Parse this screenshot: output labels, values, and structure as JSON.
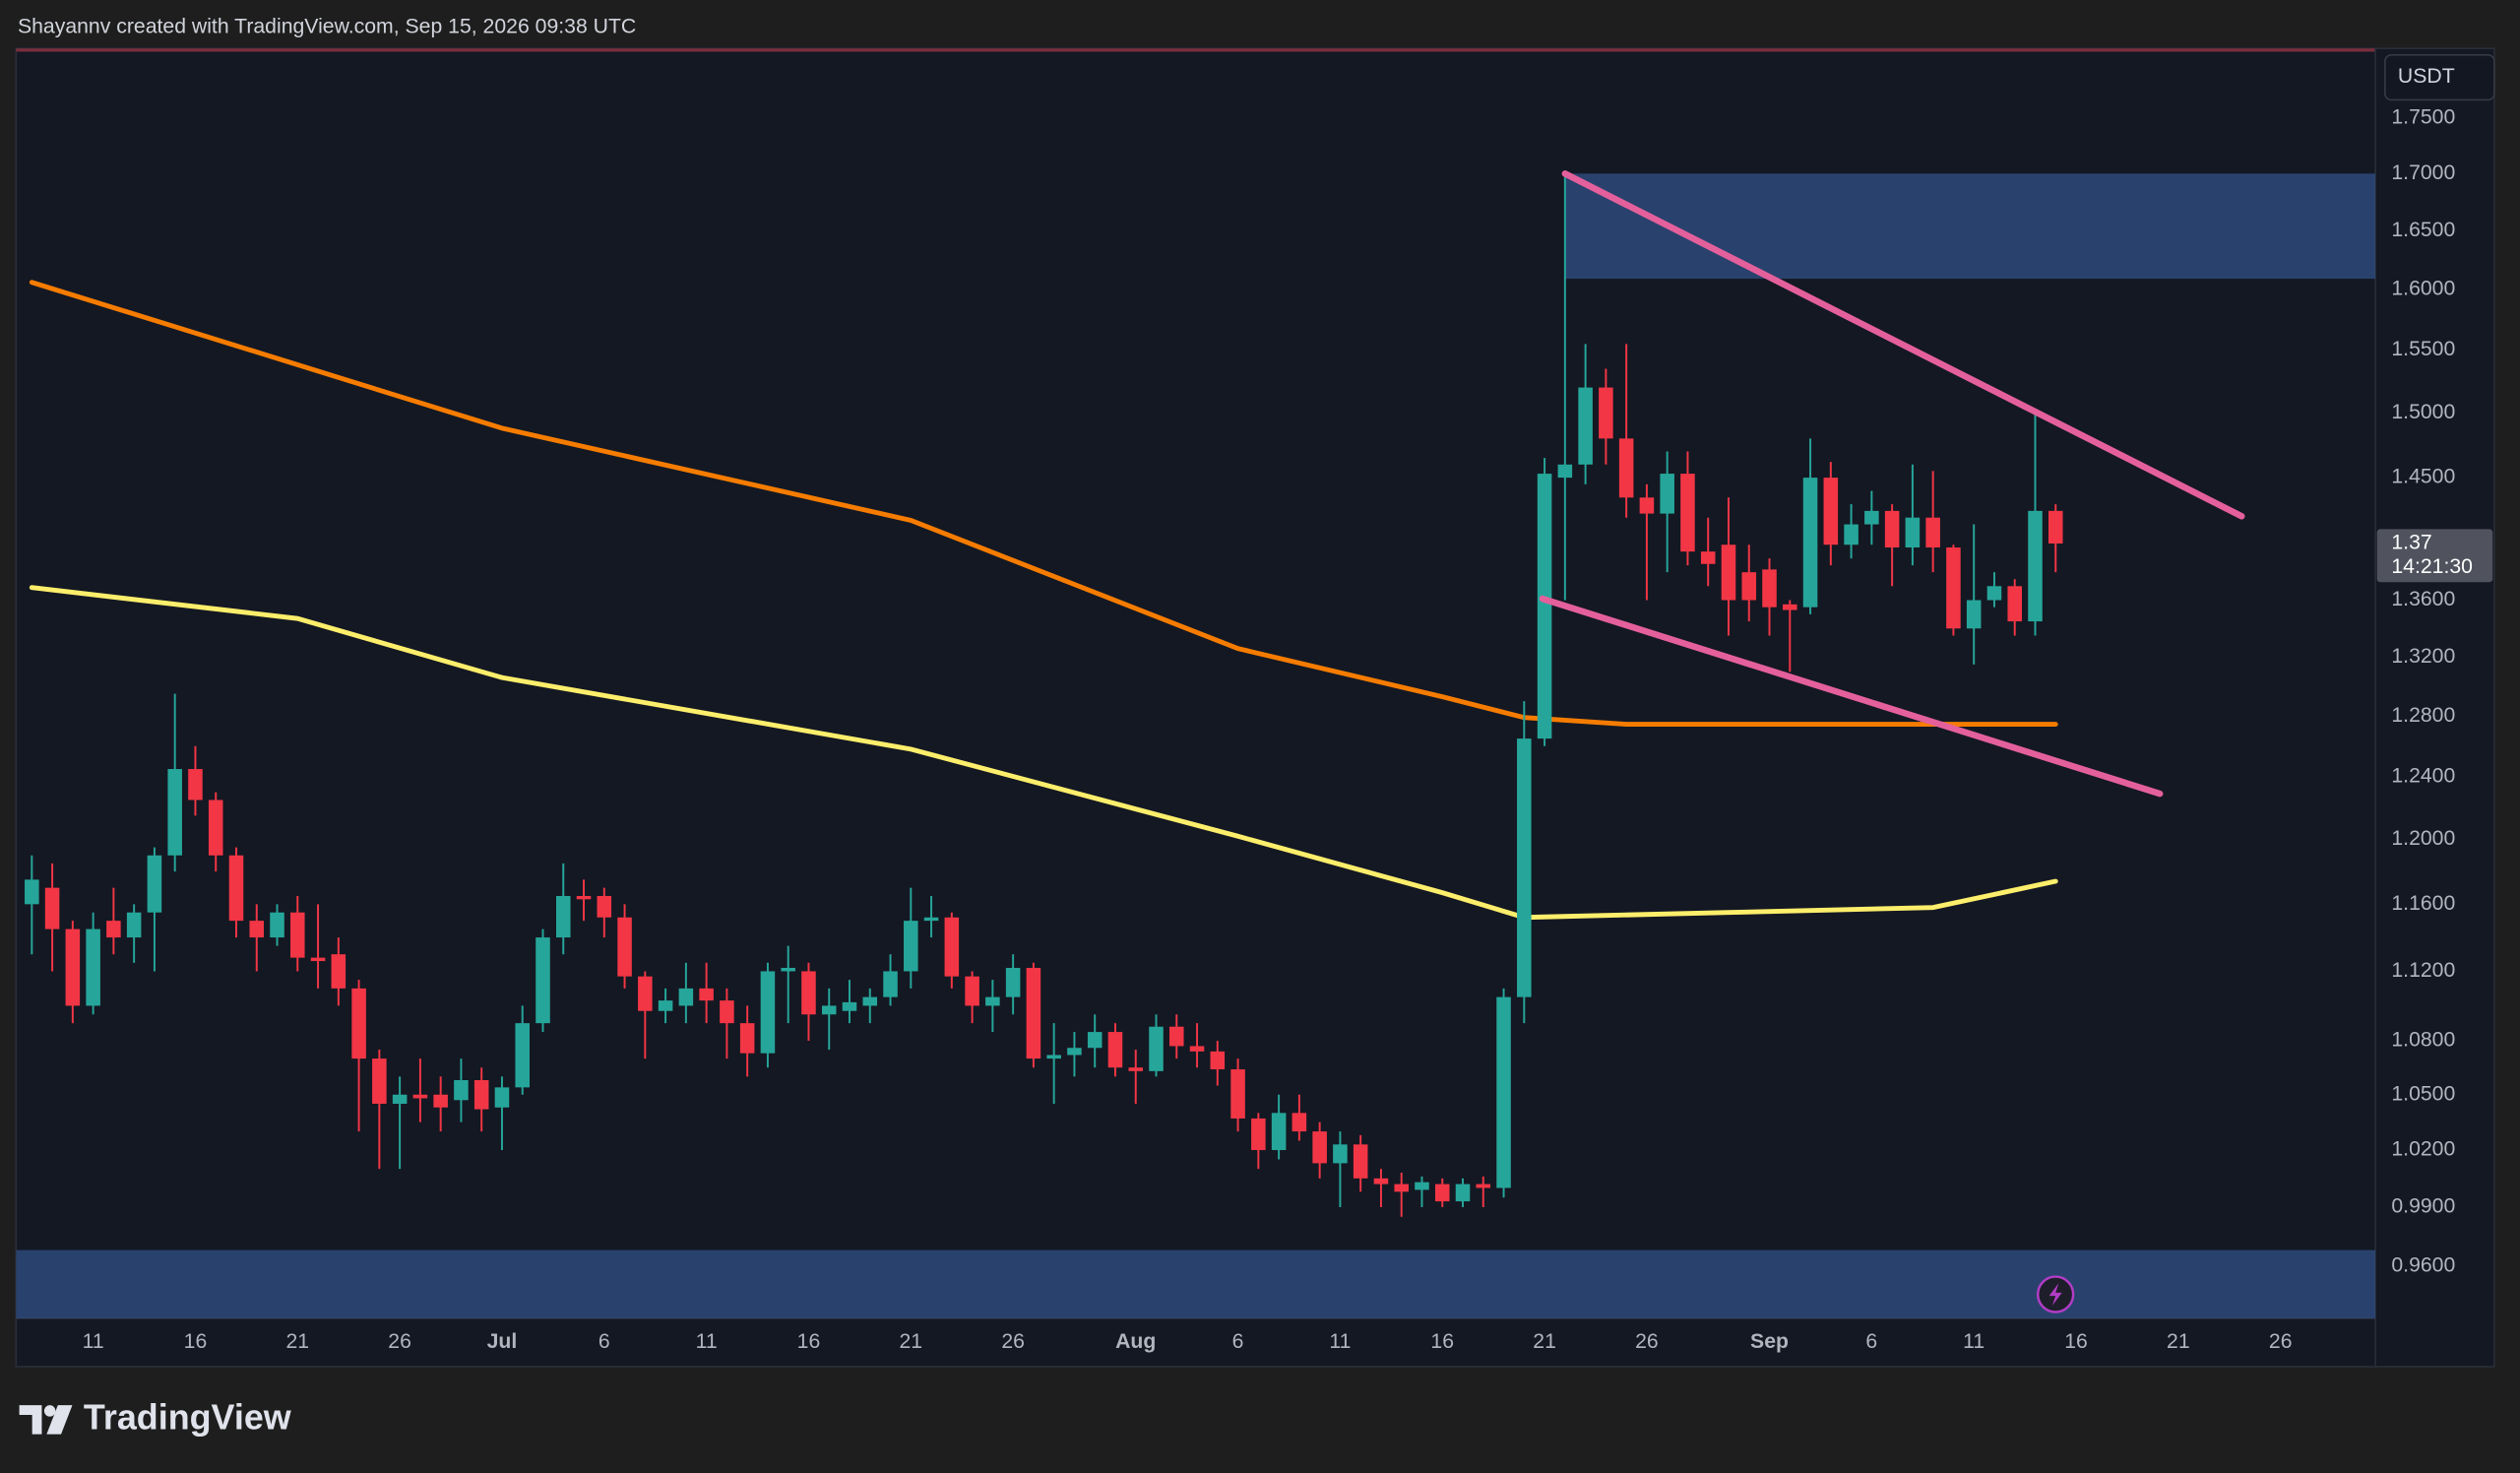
{
  "header": "Shayannv created with TradingView.com, Sep 15, 2026 09:38 UTC",
  "logo": "TradingView",
  "currency": "USDT",
  "countdown": "14:21:30",
  "chart_data": {
    "type": "candlestick",
    "log_scale": true,
    "up_color": "#26a69a",
    "down_color": "#f23645",
    "xlim": [
      -3.77,
      111.64
    ],
    "ylim": [
      0.934,
      1.815
    ],
    "xticks": [
      {
        "value": 0,
        "label": "11"
      },
      {
        "value": 5,
        "label": "16"
      },
      {
        "value": 10,
        "label": "21"
      },
      {
        "value": 15,
        "label": "26"
      },
      {
        "value": 20,
        "label": "Jul"
      },
      {
        "value": 25,
        "label": "6"
      },
      {
        "value": 30,
        "label": "11"
      },
      {
        "value": 35,
        "label": "16"
      },
      {
        "value": 40,
        "label": "21"
      },
      {
        "value": 45,
        "label": "26"
      },
      {
        "value": 51,
        "label": "Aug"
      },
      {
        "value": 56,
        "label": "6"
      },
      {
        "value": 61,
        "label": "11"
      },
      {
        "value": 66,
        "label": "16"
      },
      {
        "value": 71,
        "label": "21"
      },
      {
        "value": 76,
        "label": "26"
      },
      {
        "value": 82,
        "label": "Sep"
      },
      {
        "value": 87,
        "label": "6"
      },
      {
        "value": 92,
        "label": "11"
      },
      {
        "value": 97,
        "label": "16"
      },
      {
        "value": 102,
        "label": "21"
      },
      {
        "value": 107,
        "label": "26"
      }
    ],
    "yticks": [
      {
        "value": 0.96,
        "label": "0.9600"
      },
      {
        "value": 0.99,
        "label": "0.9900"
      },
      {
        "value": 1.02,
        "label": "1.0200"
      },
      {
        "value": 1.05,
        "label": "1.0500"
      },
      {
        "value": 1.08,
        "label": "1.0800"
      },
      {
        "value": 1.12,
        "label": "1.1200"
      },
      {
        "value": 1.16,
        "label": "1.1600"
      },
      {
        "value": 1.2,
        "label": "1.2000"
      },
      {
        "value": 1.24,
        "label": "1.2400"
      },
      {
        "value": 1.28,
        "label": "1.2800"
      },
      {
        "value": 1.32,
        "label": "1.3200"
      },
      {
        "value": 1.36,
        "label": "1.3600"
      },
      {
        "value": 1.45,
        "label": "1.4500"
      },
      {
        "value": 1.5,
        "label": "1.5000"
      },
      {
        "value": 1.55,
        "label": "1.5500"
      },
      {
        "value": 1.6,
        "label": "1.6000"
      },
      {
        "value": 1.65,
        "label": "1.6500"
      },
      {
        "value": 1.7,
        "label": "1.7000"
      },
      {
        "value": 1.75,
        "label": "1.7500"
      }
    ],
    "candles": {
      "x": [
        -3,
        -2,
        -1,
        0,
        1,
        2,
        3,
        4,
        5,
        6,
        7,
        8,
        9,
        10,
        11,
        12,
        13,
        14,
        15,
        16,
        17,
        18,
        19,
        20,
        21,
        22,
        23,
        24,
        25,
        26,
        27,
        28,
        29,
        30,
        31,
        32,
        33,
        34,
        35,
        36,
        37,
        38,
        39,
        40,
        41,
        42,
        43,
        44,
        45,
        46,
        47,
        48,
        49,
        50,
        51,
        52,
        53,
        54,
        55,
        56,
        57,
        58,
        59,
        60,
        61,
        62,
        63,
        64,
        65,
        66,
        67,
        68,
        69,
        70,
        71,
        72,
        73,
        74,
        75,
        76,
        77,
        78,
        79,
        80,
        81,
        82,
        83,
        84,
        85,
        86,
        87,
        88,
        89,
        90,
        91,
        92,
        93,
        94,
        95,
        96
      ],
      "open": [
        1.16,
        1.17,
        1.145,
        1.1,
        1.15,
        1.14,
        1.155,
        1.19,
        1.245,
        1.225,
        1.19,
        1.15,
        1.14,
        1.155,
        1.128,
        1.13,
        1.11,
        1.07,
        1.045,
        1.05,
        1.05,
        1.047,
        1.058,
        1.043,
        1.054,
        1.09,
        1.14,
        1.165,
        1.165,
        1.152,
        1.117,
        1.097,
        1.1,
        1.11,
        1.103,
        1.09,
        1.073,
        1.12,
        1.12,
        1.095,
        1.097,
        1.1,
        1.105,
        1.12,
        1.15,
        1.152,
        1.117,
        1.1,
        1.105,
        1.122,
        1.07,
        1.072,
        1.076,
        1.085,
        1.065,
        1.063,
        1.088,
        1.077,
        1.074,
        1.064,
        1.037,
        1.02,
        1.04,
        1.03,
        1.013,
        1.023,
        1.005,
        1.002,
        0.999,
        1.002,
        0.993,
        1.002,
        1.0,
        1.105,
        1.265,
        1.45,
        1.46,
        1.52,
        1.48,
        1.435,
        1.423,
        1.453,
        1.395,
        1.4,
        1.38,
        1.382,
        1.357,
        1.355,
        1.45,
        1.4,
        1.415,
        1.425,
        1.398,
        1.42,
        1.398,
        1.34,
        1.36,
        1.37,
        1.345,
        1.425
      ],
      "high": [
        1.19,
        1.185,
        1.15,
        1.155,
        1.17,
        1.16,
        1.195,
        1.295,
        1.26,
        1.23,
        1.195,
        1.16,
        1.16,
        1.165,
        1.16,
        1.14,
        1.115,
        1.075,
        1.06,
        1.07,
        1.06,
        1.07,
        1.065,
        1.06,
        1.1,
        1.145,
        1.185,
        1.175,
        1.17,
        1.16,
        1.12,
        1.11,
        1.125,
        1.125,
        1.11,
        1.1,
        1.125,
        1.135,
        1.125,
        1.11,
        1.115,
        1.11,
        1.13,
        1.17,
        1.165,
        1.155,
        1.12,
        1.115,
        1.13,
        1.125,
        1.09,
        1.085,
        1.095,
        1.09,
        1.075,
        1.095,
        1.095,
        1.09,
        1.08,
        1.07,
        1.04,
        1.05,
        1.05,
        1.035,
        1.03,
        1.028,
        1.01,
        1.008,
        1.006,
        1.005,
        1.005,
        1.006,
        1.11,
        1.29,
        1.465,
        1.7,
        1.555,
        1.535,
        1.555,
        1.445,
        1.47,
        1.47,
        1.42,
        1.435,
        1.4,
        1.39,
        1.36,
        1.48,
        1.462,
        1.43,
        1.44,
        1.43,
        1.46,
        1.455,
        1.4,
        1.415,
        1.38,
        1.375,
        1.5,
        1.43
      ],
      "low": [
        1.13,
        1.12,
        1.09,
        1.095,
        1.13,
        1.125,
        1.12,
        1.18,
        1.215,
        1.18,
        1.14,
        1.12,
        1.135,
        1.12,
        1.11,
        1.1,
        1.03,
        1.01,
        1.01,
        1.035,
        1.03,
        1.035,
        1.03,
        1.02,
        1.05,
        1.085,
        1.13,
        1.15,
        1.14,
        1.11,
        1.07,
        1.09,
        1.09,
        1.09,
        1.07,
        1.06,
        1.065,
        1.09,
        1.08,
        1.075,
        1.09,
        1.09,
        1.1,
        1.11,
        1.14,
        1.11,
        1.09,
        1.085,
        1.095,
        1.065,
        1.045,
        1.06,
        1.065,
        1.06,
        1.045,
        1.06,
        1.07,
        1.065,
        1.055,
        1.03,
        1.01,
        1.015,
        1.025,
        1.005,
        0.99,
        0.998,
        0.99,
        0.985,
        0.99,
        0.99,
        0.99,
        0.99,
        0.995,
        1.09,
        1.26,
        1.36,
        1.445,
        1.46,
        1.42,
        1.36,
        1.38,
        1.385,
        1.37,
        1.335,
        1.345,
        1.335,
        1.31,
        1.35,
        1.385,
        1.39,
        1.4,
        1.37,
        1.385,
        1.38,
        1.335,
        1.315,
        1.355,
        1.335,
        1.335,
        1.38
      ],
      "close": [
        1.175,
        1.145,
        1.1,
        1.145,
        1.14,
        1.155,
        1.19,
        1.245,
        1.225,
        1.19,
        1.15,
        1.14,
        1.155,
        1.128,
        1.126,
        1.11,
        1.07,
        1.045,
        1.05,
        1.048,
        1.043,
        1.058,
        1.042,
        1.054,
        1.09,
        1.14,
        1.165,
        1.163,
        1.152,
        1.117,
        1.097,
        1.103,
        1.11,
        1.103,
        1.09,
        1.073,
        1.12,
        1.122,
        1.095,
        1.1,
        1.102,
        1.105,
        1.12,
        1.15,
        1.152,
        1.117,
        1.1,
        1.105,
        1.122,
        1.07,
        1.072,
        1.076,
        1.085,
        1.065,
        1.063,
        1.088,
        1.077,
        1.074,
        1.064,
        1.037,
        1.02,
        1.04,
        1.03,
        1.013,
        1.023,
        1.005,
        1.002,
        0.998,
        1.003,
        0.993,
        1.002,
        1.0,
        1.105,
        1.265,
        1.453,
        1.46,
        1.52,
        1.48,
        1.435,
        1.423,
        1.453,
        1.395,
        1.386,
        1.36,
        1.36,
        1.355,
        1.353,
        1.45,
        1.4,
        1.415,
        1.425,
        1.398,
        1.42,
        1.398,
        1.34,
        1.36,
        1.37,
        1.345,
        1.425,
        1.4009
      ]
    },
    "lines": [
      {
        "color": "#f57c00",
        "x": [
          -3,
          20,
          40,
          56,
          66,
          70,
          75,
          96
        ],
        "values": [
          1.606,
          1.488,
          1.418,
          1.326,
          1.293,
          1.279,
          1.2745,
          1.2745
        ]
      },
      {
        "color": "#fdee6b",
        "x": [
          -3,
          10,
          20,
          40,
          56,
          66,
          70,
          80,
          90,
          96
        ],
        "values": [
          1.369,
          1.347,
          1.306,
          1.258,
          1.202,
          1.167,
          1.152,
          1.155,
          1.158,
          1.174
        ]
      }
    ],
    "trendlines": [
      {
        "color": "#e4609c",
        "x": [
          72,
          105.1
        ],
        "values": [
          1.7,
          1.421
        ]
      },
      {
        "color": "#e4609c",
        "x": [
          70.9,
          101.1
        ],
        "values": [
          1.361,
          1.229
        ]
      }
    ],
    "zones": [
      {
        "color": "#2d4a7a",
        "x_from": 72,
        "values": [
          1.609,
          1.7
        ]
      },
      {
        "color": "#2d4a7a",
        "values": [
          0.934,
          0.968
        ]
      }
    ]
  }
}
